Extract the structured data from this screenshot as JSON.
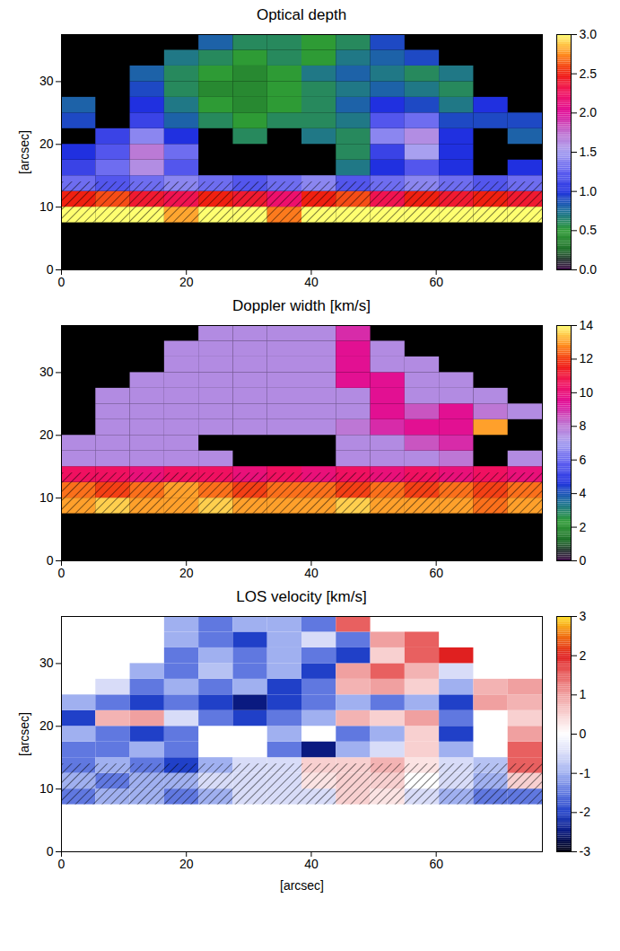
{
  "chart_data": [
    {
      "type": "heatmap",
      "title": "Optical depth",
      "ylabel": "[arcsec]",
      "xlim": [
        0,
        77
      ],
      "ylim": [
        0,
        37.5
      ],
      "xticks": [
        0,
        20,
        40,
        60
      ],
      "yticks": [
        0,
        10,
        20,
        30
      ],
      "x_edges": [
        0,
        5.5,
        11,
        16.5,
        22,
        27.5,
        33,
        38.5,
        44,
        49.5,
        55,
        60.5,
        66,
        71.5,
        77
      ],
      "y_edges": [
        7.5,
        10,
        12.5,
        15,
        17.5,
        20,
        22.5,
        25,
        27.5,
        30,
        32.5,
        35,
        37.5
      ],
      "values": [
        [
          3,
          3,
          3,
          2.8,
          3,
          3,
          2.7,
          3,
          3,
          3,
          3,
          3,
          3,
          3
        ],
        [
          2.5,
          2.6,
          2.4,
          2.3,
          2.5,
          2.4,
          2.2,
          2.5,
          2.6,
          2.3,
          2.5,
          2.4,
          2.5,
          2.4
        ],
        [
          1.3,
          1.2,
          1.3,
          1.4,
          1.3,
          1.2,
          1.3,
          1.4,
          1.2,
          1.3,
          1.4,
          1.3,
          1.2,
          1.3
        ],
        [
          1.1,
          1.3,
          1.6,
          1.2,
          null,
          null,
          null,
          null,
          0.7,
          1.0,
          1.2,
          1.0,
          null,
          1.0
        ],
        [
          1.0,
          1.2,
          1.7,
          1.3,
          null,
          null,
          null,
          null,
          0.6,
          1.1,
          1.5,
          1.0,
          null,
          null
        ],
        [
          null,
          1.1,
          1.4,
          1.0,
          null,
          0.6,
          null,
          0.7,
          0.6,
          1.4,
          1.6,
          1.0,
          null,
          0.8
        ],
        [
          0.9,
          null,
          1.1,
          0.8,
          0.6,
          0.5,
          0.6,
          0.6,
          0.7,
          1.2,
          1.3,
          0.9,
          0.9,
          0.9
        ],
        [
          0.8,
          null,
          1.0,
          0.7,
          0.5,
          0.4,
          0.5,
          0.6,
          0.8,
          1.0,
          0.9,
          0.7,
          1.0,
          null
        ],
        [
          null,
          null,
          0.9,
          0.6,
          0.4,
          0.4,
          0.5,
          0.6,
          0.7,
          0.8,
          0.7,
          0.6,
          null,
          null
        ],
        [
          null,
          null,
          0.8,
          0.6,
          0.5,
          0.4,
          0.5,
          0.7,
          0.8,
          0.7,
          0.6,
          0.7,
          null,
          null
        ],
        [
          null,
          null,
          null,
          0.7,
          0.6,
          0.5,
          0.6,
          0.5,
          0.7,
          0.8,
          0.9,
          null,
          null,
          null
        ],
        [
          null,
          null,
          null,
          null,
          0.8,
          0.6,
          0.6,
          0.5,
          0.6,
          0.9,
          null,
          null,
          null,
          null
        ]
      ],
      "hatched": {
        "y": [
          7.5,
          14
        ]
      },
      "colorbar": {
        "range": [
          0,
          3
        ],
        "ticks": [
          {
            "value": 0,
            "label": "0.0"
          },
          {
            "value": 0.5,
            "label": "0.5"
          },
          {
            "value": 1,
            "label": "1.0"
          },
          {
            "value": 1.5,
            "label": "1.5"
          },
          {
            "value": 2,
            "label": "2.0"
          },
          {
            "value": 2.5,
            "label": "2.5"
          },
          {
            "value": 3,
            "label": "3.0"
          }
        ]
      }
    },
    {
      "type": "heatmap",
      "title": "Doppler width [km/s]",
      "xlim": [
        0,
        77
      ],
      "ylim": [
        0,
        37.5
      ],
      "xticks": [
        0,
        20,
        40,
        60
      ],
      "yticks": [
        0,
        10,
        20,
        30
      ],
      "x_edges": [
        0,
        5.5,
        11,
        16.5,
        22,
        27.5,
        33,
        38.5,
        44,
        49.5,
        55,
        60.5,
        66,
        71.5,
        77
      ],
      "y_edges": [
        7.5,
        10,
        12.5,
        15,
        17.5,
        20,
        22.5,
        25,
        27.5,
        30,
        32.5,
        35,
        37.5
      ],
      "values": [
        [
          13,
          13.5,
          13,
          13,
          13.5,
          13,
          13,
          13,
          13.5,
          13,
          13,
          13,
          12.5,
          13
        ],
        [
          12.5,
          12,
          12.5,
          13,
          12.5,
          12,
          12.5,
          12.5,
          12,
          12.5,
          12,
          12.5,
          12,
          12.5
        ],
        [
          10.5,
          10.5,
          10,
          10.5,
          10.5,
          10,
          10.5,
          10,
          10.5,
          10,
          10.5,
          10,
          10.5,
          10
        ],
        [
          7.5,
          7.5,
          7.5,
          7.5,
          7.5,
          null,
          null,
          null,
          7.5,
          7.5,
          7.5,
          8,
          null,
          7.5
        ],
        [
          7.5,
          7.5,
          7.5,
          7.5,
          null,
          null,
          null,
          null,
          7.5,
          7.5,
          8.5,
          9,
          null,
          null
        ],
        [
          null,
          7.5,
          7.5,
          7.5,
          7.5,
          7.5,
          7.5,
          7.5,
          8,
          9,
          9.5,
          9.5,
          13,
          null
        ],
        [
          null,
          7.5,
          7.5,
          7.5,
          7.5,
          7.5,
          7.5,
          7.5,
          7.5,
          9.5,
          8.5,
          9.5,
          8,
          7.5
        ],
        [
          null,
          7.5,
          7.5,
          7.5,
          7.5,
          7.5,
          7.5,
          7.5,
          7.5,
          9.5,
          7.5,
          7.5,
          7.5,
          null
        ],
        [
          null,
          null,
          7.5,
          7.5,
          7.5,
          7.5,
          7.5,
          7.5,
          9.5,
          9.5,
          7.5,
          7.5,
          null,
          null
        ],
        [
          null,
          null,
          null,
          7.5,
          7.5,
          7.5,
          7.5,
          7.5,
          9.5,
          7.5,
          7.5,
          null,
          null,
          null
        ],
        [
          null,
          null,
          null,
          7.5,
          7.5,
          7.5,
          7.5,
          7.5,
          9.5,
          7.5,
          null,
          null,
          null,
          null
        ],
        [
          null,
          null,
          null,
          null,
          7.5,
          7.5,
          7.5,
          7.5,
          9,
          null,
          null,
          null,
          null,
          null
        ]
      ],
      "hatched": {
        "y": [
          7.5,
          14
        ]
      },
      "colorbar": {
        "range": [
          0,
          14
        ],
        "ticks": [
          0,
          2,
          4,
          6,
          8,
          10,
          12,
          14
        ]
      }
    },
    {
      "type": "heatmap",
      "title": "LOS velocity [km/s]",
      "xlabel": "[arcsec]",
      "ylabel": "[arcsec]",
      "xlim": [
        0,
        77
      ],
      "ylim": [
        0,
        37.5
      ],
      "xticks": [
        0,
        20,
        40,
        60
      ],
      "yticks": [
        0,
        10,
        20,
        30
      ],
      "x_edges": [
        0,
        5.5,
        11,
        16.5,
        22,
        27.5,
        33,
        38.5,
        44,
        49.5,
        55,
        60.5,
        66,
        71.5,
        77
      ],
      "y_edges": [
        7.5,
        10,
        12.5,
        15,
        17.5,
        20,
        22.5,
        25,
        27.5,
        30,
        32.5,
        35,
        37.5
      ],
      "values": [
        [
          -1.5,
          -1,
          -1,
          -1.5,
          -1,
          -0.5,
          -0.5,
          -0.5,
          0.5,
          0.3,
          -0.5,
          -1,
          -1.5,
          -1.5
        ],
        [
          -1,
          -1.5,
          -1,
          -1,
          -0.5,
          -0.5,
          -0.5,
          0.3,
          0.5,
          0.5,
          0,
          -0.5,
          -1,
          0.5
        ],
        [
          -1.5,
          -1,
          -1.5,
          -2,
          -1,
          -0.5,
          -0.5,
          0.5,
          0.5,
          0.8,
          0.3,
          -0.5,
          -0.8,
          1.5
        ],
        [
          -1.5,
          -1.5,
          -1,
          -1.5,
          null,
          null,
          -1.5,
          -2.5,
          -1,
          -0.5,
          0.5,
          -1,
          null,
          1.5
        ],
        [
          -1,
          -1.5,
          -2,
          -1.5,
          null,
          null,
          -1,
          null,
          -1.5,
          -1,
          0.5,
          -2,
          null,
          1
        ],
        [
          -2,
          0.8,
          1,
          -0.5,
          -1.5,
          -2,
          -1.5,
          -1,
          0.8,
          0.5,
          1,
          -1.5,
          null,
          0.5
        ],
        [
          -1,
          -1.5,
          -2,
          -1.5,
          -2,
          -2.5,
          -2,
          -1.5,
          -1,
          -1.5,
          -1,
          -2,
          1,
          0.8
        ],
        [
          null,
          -0.5,
          -1.5,
          -1,
          -1.5,
          -1,
          -2,
          -1.5,
          0.8,
          1,
          0.5,
          -1,
          0.8,
          1
        ],
        [
          null,
          null,
          -1,
          -1.5,
          -0.8,
          -1.5,
          -1,
          -2,
          1,
          1.5,
          0.8,
          -0.5,
          null,
          null
        ],
        [
          null,
          null,
          null,
          -1.5,
          -1,
          -1.5,
          -1,
          -1.5,
          -2,
          0.5,
          1.5,
          2,
          null,
          null
        ],
        [
          null,
          null,
          null,
          -1,
          -1.5,
          -2,
          -1,
          -0.5,
          -1.5,
          1,
          1.5,
          null,
          null,
          null
        ],
        [
          null,
          null,
          null,
          -1,
          -1.5,
          -1,
          -1,
          -1.5,
          1.5,
          null,
          null,
          null,
          null,
          null
        ]
      ],
      "hatched": {
        "y": [
          7.5,
          14
        ]
      },
      "colorbar": {
        "range": [
          -3,
          3
        ],
        "ticks": [
          -3,
          -2,
          -1,
          0,
          1,
          2,
          3
        ]
      }
    }
  ]
}
